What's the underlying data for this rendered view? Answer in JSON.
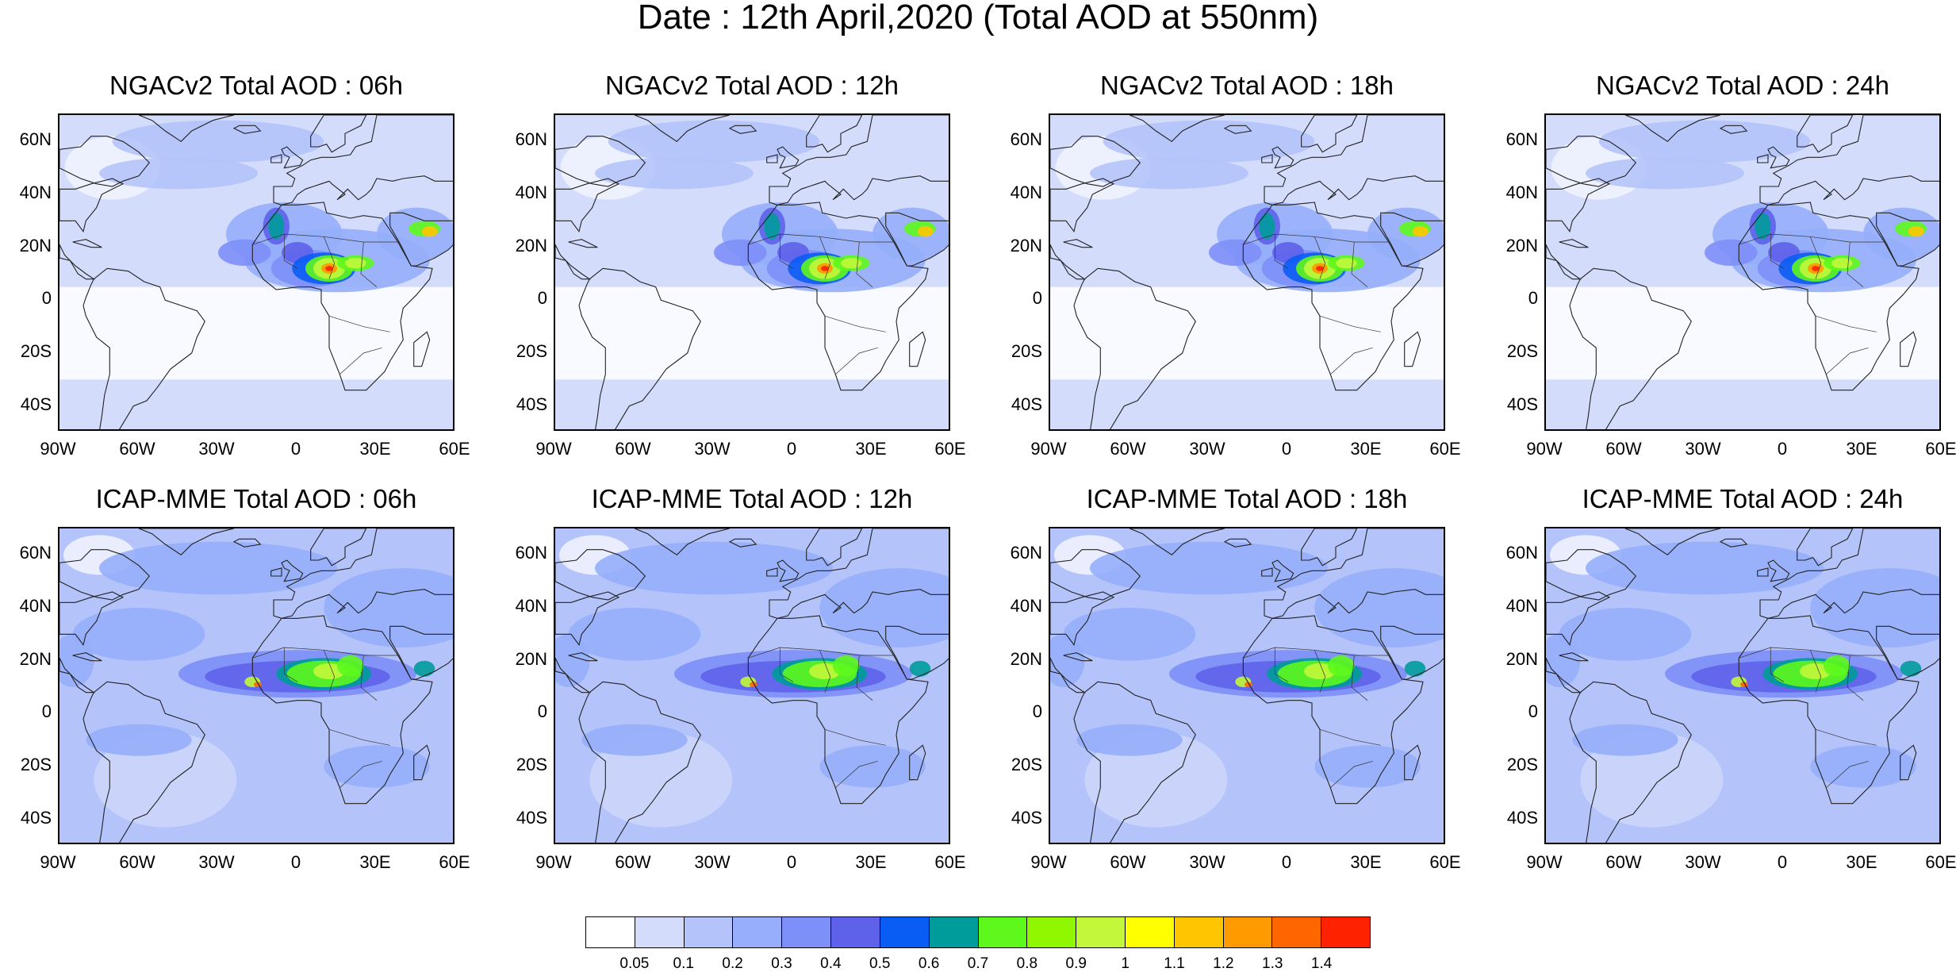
{
  "title": "Date : 12th April,2020 (Total AOD at 550nm)",
  "panels": [
    {
      "title": "NGACv2 Total AOD : 06h",
      "model": "ngac"
    },
    {
      "title": "NGACv2 Total AOD : 12h",
      "model": "ngac"
    },
    {
      "title": "NGACv2 Total AOD : 18h",
      "model": "ngac"
    },
    {
      "title": "NGACv2 Total AOD : 24h",
      "model": "ngac"
    },
    {
      "title": "ICAP-MME Total AOD : 06h",
      "model": "icap"
    },
    {
      "title": "ICAP-MME Total AOD : 12h",
      "model": "icap"
    },
    {
      "title": "ICAP-MME Total AOD : 18h",
      "model": "icap"
    },
    {
      "title": "ICAP-MME Total AOD : 24h",
      "model": "icap"
    }
  ],
  "lat_ticks": [
    "60N",
    "40N",
    "20N",
    "0",
    "20S",
    "40S"
  ],
  "lon_ticks": [
    "90W",
    "60W",
    "30W",
    "0",
    "30E",
    "60E"
  ],
  "colorbar": {
    "labels": [
      "0.05",
      "0.1",
      "0.2",
      "0.3",
      "0.4",
      "0.5",
      "0.6",
      "0.7",
      "0.8",
      "0.9",
      "1",
      "1.1",
      "1.2",
      "1.3",
      "1.4"
    ],
    "colors": [
      "#ffffff",
      "#d3dcfb",
      "#b4c3fa",
      "#96aefb",
      "#7d8ff8",
      "#5e62ea",
      "#0a5df4",
      "#009b9b",
      "#5ef81c",
      "#8ff700",
      "#c2f73a",
      "#ffff00",
      "#ffc600",
      "#ff9a00",
      "#ff6600",
      "#ff2200"
    ]
  },
  "icons": {
    "map": "world-map-outline"
  }
}
